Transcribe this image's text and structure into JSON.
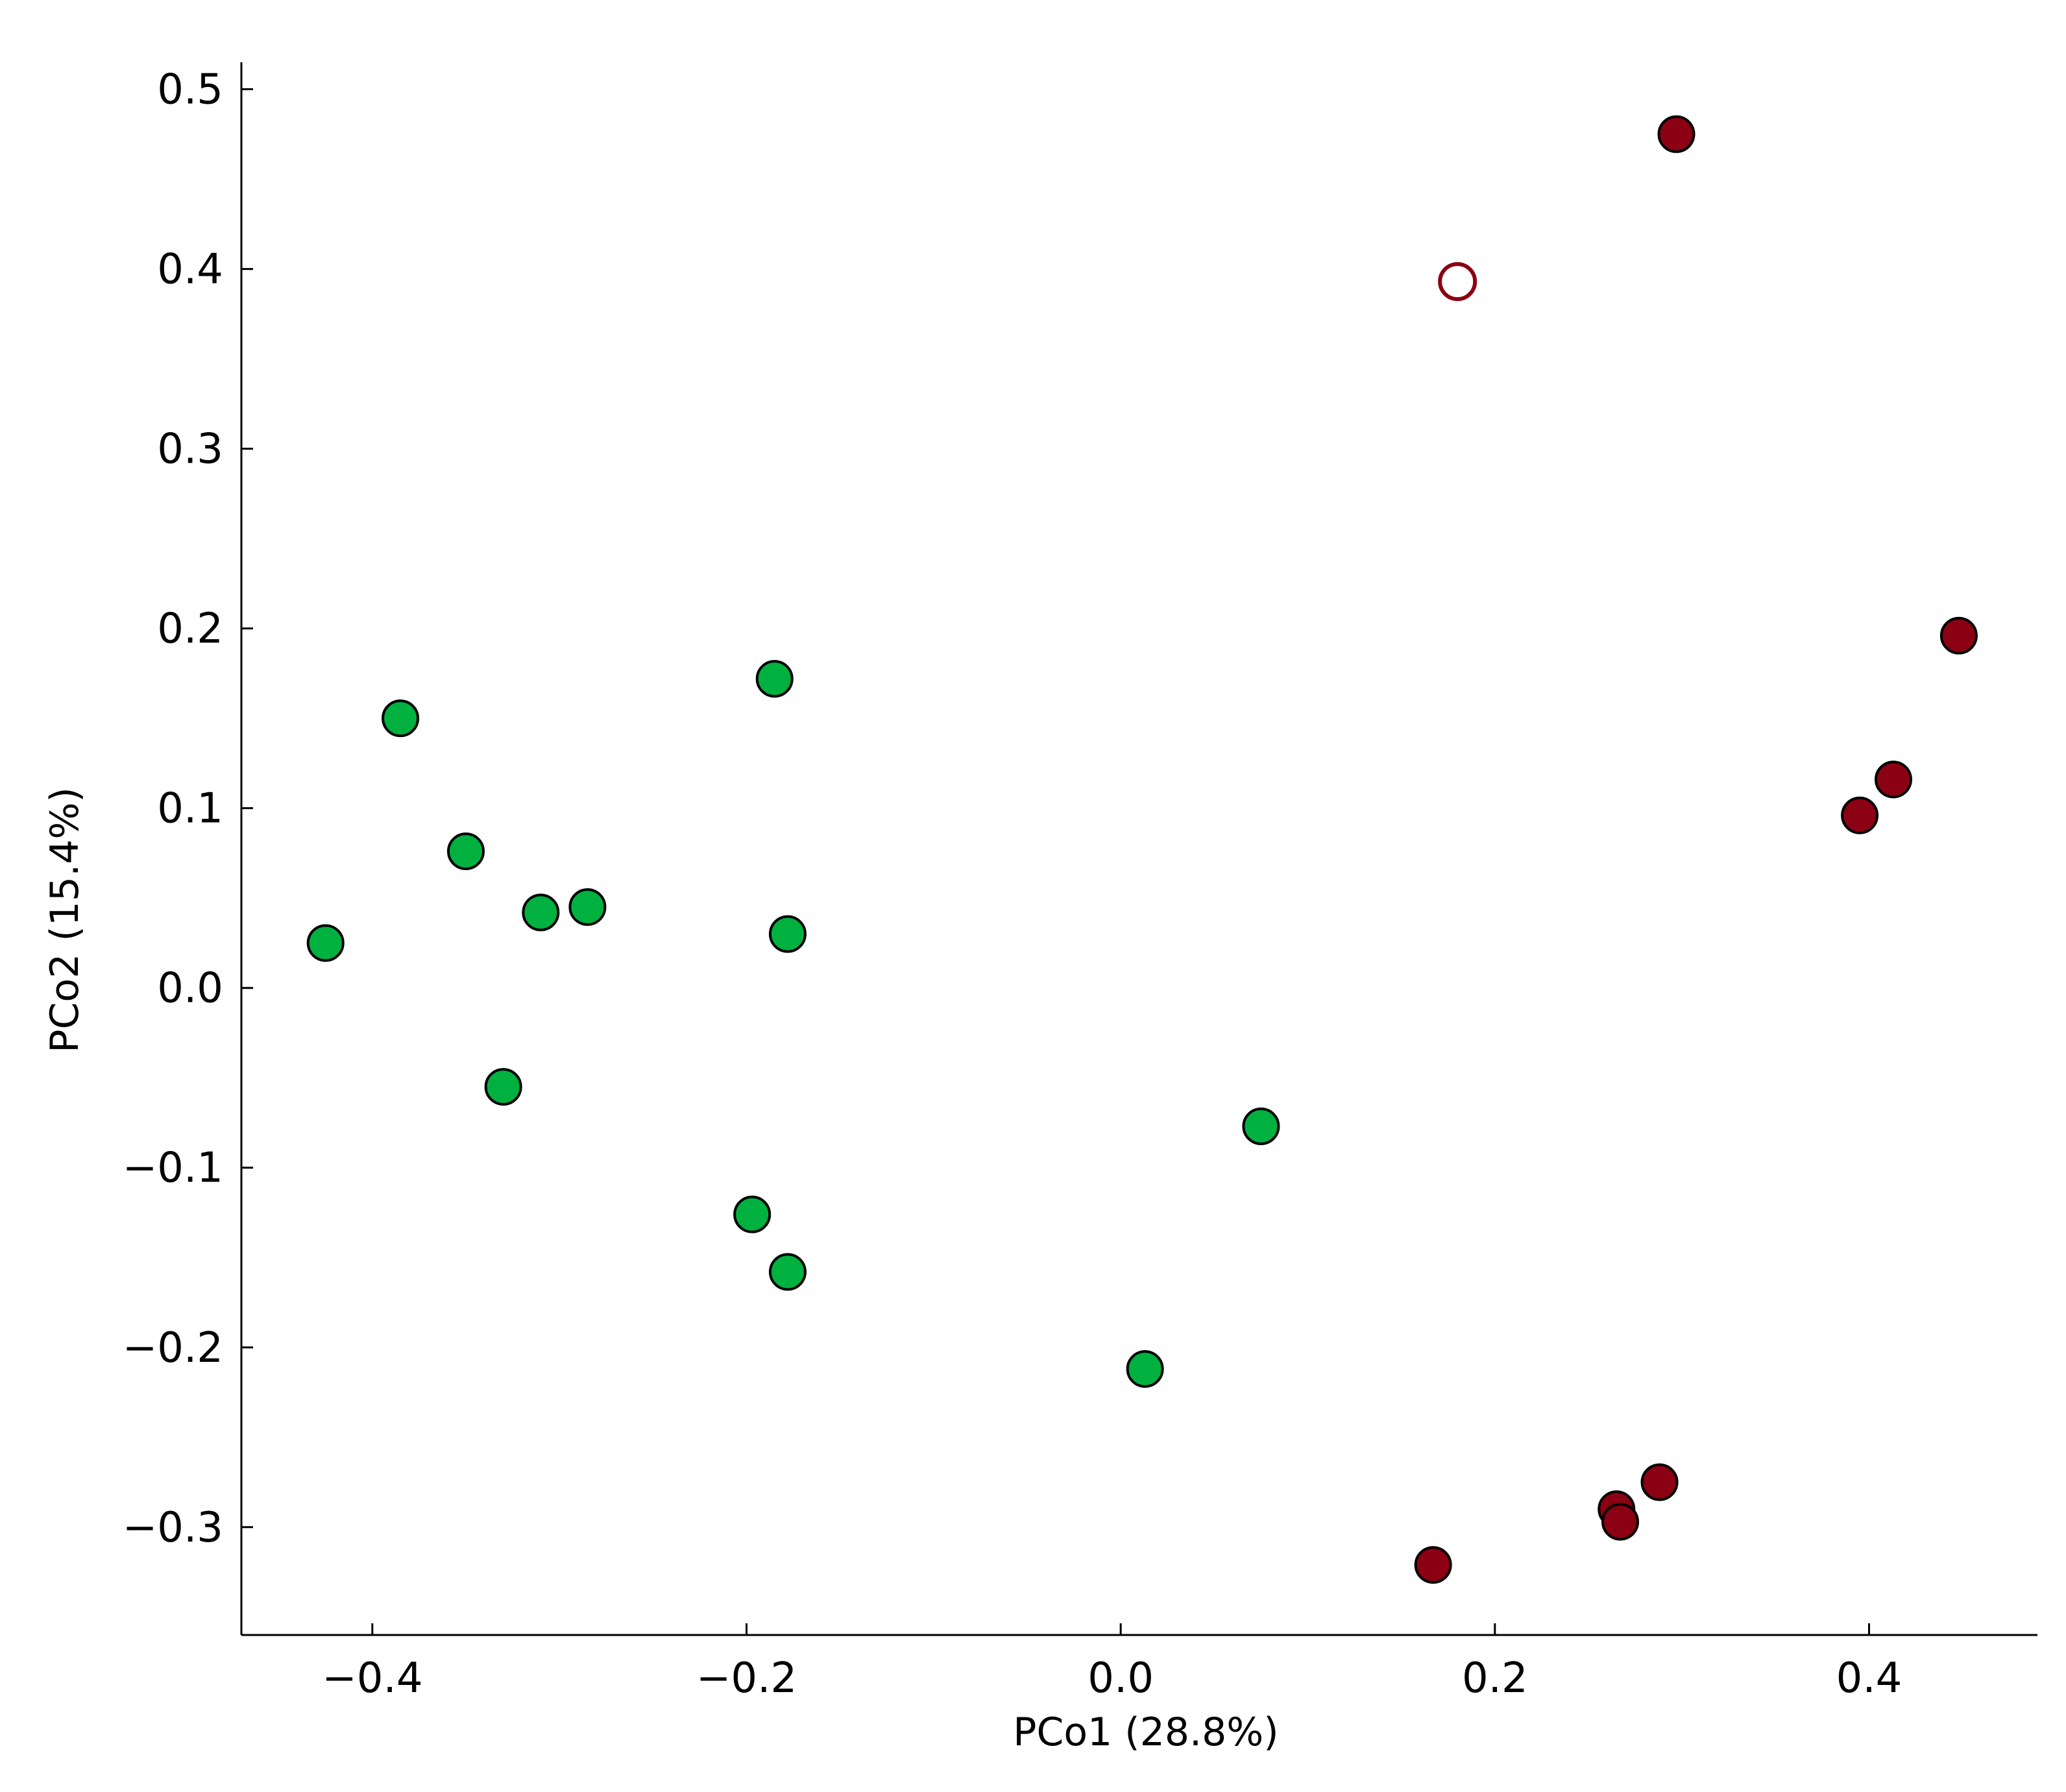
{
  "chart_data": {
    "type": "scatter",
    "title": "",
    "xlabel": "PCo1 (28.8%)",
    "ylabel": "PCo2 (15.4%)",
    "xlim": [
      -0.47,
      0.49
    ],
    "ylim": [
      -0.36,
      0.515
    ],
    "xticks": [
      -0.4,
      -0.2,
      0.0,
      0.2,
      0.4
    ],
    "xtick_labels": [
      "−0.4",
      "−0.2",
      "0.0",
      "0.2",
      "0.4"
    ],
    "yticks": [
      -0.3,
      -0.2,
      -0.1,
      0.0,
      0.1,
      0.2,
      0.3,
      0.4,
      0.5
    ],
    "ytick_labels": [
      "−0.3",
      "−0.2",
      "−0.1",
      "0.0",
      "0.1",
      "0.2",
      "0.3",
      "0.4",
      "0.5"
    ],
    "grid": false,
    "series": [
      {
        "color": "#00b140",
        "marker": "filled-circle",
        "x": [
          -0.385,
          -0.35,
          -0.425,
          -0.31,
          -0.285,
          -0.185,
          -0.178,
          -0.33,
          -0.197,
          -0.178,
          0.075,
          0.013
        ],
        "y": [
          0.15,
          0.076,
          0.025,
          0.042,
          0.045,
          0.172,
          0.03,
          -0.055,
          -0.126,
          -0.158,
          -0.077,
          -0.212
        ]
      },
      {
        "color": "#8b0012",
        "marker": "filled-circle",
        "x": [
          0.297,
          0.448,
          0.413,
          0.395,
          0.288,
          0.265,
          0.267,
          0.167
        ],
        "y": [
          0.475,
          0.196,
          0.116,
          0.096,
          -0.275,
          -0.29,
          -0.297,
          -0.321
        ]
      },
      {
        "color": "#8b0012",
        "marker": "open-circle",
        "x": [
          0.18
        ],
        "y": [
          0.393
        ]
      }
    ]
  }
}
